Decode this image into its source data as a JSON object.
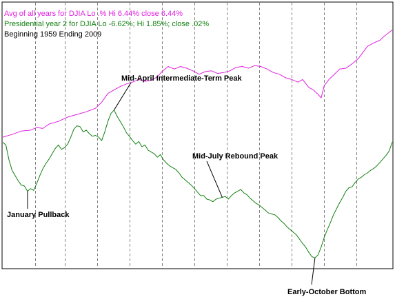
{
  "colors": {
    "background": "#ffffff",
    "avg_series": "#e020e0",
    "pres_series": "#108010",
    "text": "#000000",
    "grid": "#808080",
    "frame": "#000000"
  },
  "legend": {
    "avg": "Avg of all years for DJIA   Lo .% Hi 6.44%  close 6.44%",
    "pres": "Presidential year 2 for DJIA  Lo -6.62%; Hi 1.85%; close .02%",
    "range": "Beginning  1959  Ending  2009"
  },
  "chart_data": {
    "type": "line",
    "x_unit": "trading-day index of year",
    "y_unit": "percent change from start of year",
    "xlim": [
      0,
      252
    ],
    "ylim": [
      -7.2,
      8.0
    ],
    "grid": "vertical dashed monthly lines",
    "month_lines_at": [
      21,
      40,
      61,
      82,
      103,
      124,
      145,
      166,
      187,
      208,
      229
    ],
    "series": [
      {
        "name": "Avg of all years for DJIA",
        "color": "#e020e0",
        "points": [
          [
            0,
            0.3
          ],
          [
            6,
            0.45
          ],
          [
            12,
            0.65
          ],
          [
            18,
            0.7
          ],
          [
            22,
            0.85
          ],
          [
            26,
            0.8
          ],
          [
            30,
            1.05
          ],
          [
            36,
            1.2
          ],
          [
            42,
            1.45
          ],
          [
            48,
            1.6
          ],
          [
            54,
            1.75
          ],
          [
            60,
            1.95
          ],
          [
            64,
            2.3
          ],
          [
            68,
            2.8
          ],
          [
            72,
            3.0
          ],
          [
            76,
            3.2
          ],
          [
            80,
            3.35
          ],
          [
            84,
            3.45
          ],
          [
            88,
            3.6
          ],
          [
            92,
            3.5
          ],
          [
            96,
            3.55
          ],
          [
            100,
            3.75
          ],
          [
            103,
            4.05
          ],
          [
            107,
            4.35
          ],
          [
            111,
            4.2
          ],
          [
            115,
            4.35
          ],
          [
            119,
            4.25
          ],
          [
            123,
            4.1
          ],
          [
            127,
            3.9
          ],
          [
            131,
            4.05
          ],
          [
            135,
            4.1
          ],
          [
            139,
            3.95
          ],
          [
            143,
            4.0
          ],
          [
            147,
            4.1
          ],
          [
            151,
            4.3
          ],
          [
            155,
            4.35
          ],
          [
            159,
            4.25
          ],
          [
            163,
            4.4
          ],
          [
            167,
            4.35
          ],
          [
            171,
            4.2
          ],
          [
            175,
            4.0
          ],
          [
            179,
            3.9
          ],
          [
            183,
            3.7
          ],
          [
            187,
            3.6
          ],
          [
            191,
            3.45
          ],
          [
            194,
            3.6
          ],
          [
            198,
            3.15
          ],
          [
            201,
            3.0
          ],
          [
            204,
            2.75
          ],
          [
            206,
            2.55
          ],
          [
            208,
            3.25
          ],
          [
            211,
            3.6
          ],
          [
            214,
            3.85
          ],
          [
            218,
            4.2
          ],
          [
            222,
            4.25
          ],
          [
            226,
            4.5
          ],
          [
            230,
            4.8
          ],
          [
            233,
            5.15
          ],
          [
            236,
            5.5
          ],
          [
            240,
            5.7
          ],
          [
            244,
            5.85
          ],
          [
            247,
            6.1
          ],
          [
            250,
            6.3
          ],
          [
            252,
            6.44
          ]
        ]
      },
      {
        "name": "Presidential year 2 for DJIA",
        "color": "#108010",
        "points": [
          [
            0,
            0.0
          ],
          [
            2,
            -0.15
          ],
          [
            4,
            -1.0
          ],
          [
            6,
            -1.6
          ],
          [
            8,
            -1.9
          ],
          [
            10,
            -2.2
          ],
          [
            12,
            -2.45
          ],
          [
            14,
            -2.5
          ],
          [
            16,
            -2.8
          ],
          [
            18,
            -2.65
          ],
          [
            20,
            -2.75
          ],
          [
            22,
            -2.35
          ],
          [
            24,
            -1.9
          ],
          [
            26,
            -1.5
          ],
          [
            28,
            -1.2
          ],
          [
            30,
            -0.95
          ],
          [
            32,
            -0.65
          ],
          [
            34,
            -0.35
          ],
          [
            36,
            -0.15
          ],
          [
            38,
            -0.4
          ],
          [
            40,
            -0.3
          ],
          [
            42,
            -0.1
          ],
          [
            44,
            0.3
          ],
          [
            46,
            0.75
          ],
          [
            48,
            0.95
          ],
          [
            50,
            0.9
          ],
          [
            52,
            0.6
          ],
          [
            54,
            0.7
          ],
          [
            56,
            0.5
          ],
          [
            58,
            0.35
          ],
          [
            60,
            0.4
          ],
          [
            62,
            0.3
          ],
          [
            64,
            0.1
          ],
          [
            66,
            0.6
          ],
          [
            68,
            1.2
          ],
          [
            70,
            1.65
          ],
          [
            72,
            1.85
          ],
          [
            74,
            1.5
          ],
          [
            76,
            1.2
          ],
          [
            78,
            0.9
          ],
          [
            80,
            0.55
          ],
          [
            82,
            0.35
          ],
          [
            84,
            0.1
          ],
          [
            86,
            -0.1
          ],
          [
            88,
            0.05
          ],
          [
            90,
            -0.25
          ],
          [
            92,
            -0.15
          ],
          [
            94,
            -0.45
          ],
          [
            96,
            -0.55
          ],
          [
            98,
            -0.65
          ],
          [
            100,
            -0.85
          ],
          [
            102,
            -0.7
          ],
          [
            104,
            -1.0
          ],
          [
            106,
            -1.2
          ],
          [
            108,
            -1.35
          ],
          [
            110,
            -1.45
          ],
          [
            112,
            -1.55
          ],
          [
            114,
            -1.75
          ],
          [
            116,
            -2.0
          ],
          [
            118,
            -2.15
          ],
          [
            120,
            -2.3
          ],
          [
            122,
            -2.45
          ],
          [
            124,
            -2.65
          ],
          [
            126,
            -2.85
          ],
          [
            128,
            -3.05
          ],
          [
            130,
            -3.05
          ],
          [
            132,
            -3.25
          ],
          [
            134,
            -3.3
          ],
          [
            136,
            -3.4
          ],
          [
            138,
            -3.25
          ],
          [
            140,
            -3.2
          ],
          [
            142,
            -3.15
          ],
          [
            144,
            -3.1
          ],
          [
            146,
            -3.25
          ],
          [
            148,
            -3.05
          ],
          [
            150,
            -2.9
          ],
          [
            152,
            -2.8
          ],
          [
            154,
            -2.7
          ],
          [
            156,
            -2.9
          ],
          [
            158,
            -3.0
          ],
          [
            160,
            -3.2
          ],
          [
            162,
            -3.35
          ],
          [
            164,
            -3.5
          ],
          [
            166,
            -3.6
          ],
          [
            168,
            -3.75
          ],
          [
            170,
            -3.9
          ],
          [
            172,
            -4.05
          ],
          [
            174,
            -4.1
          ],
          [
            176,
            -4.15
          ],
          [
            178,
            -4.3
          ],
          [
            180,
            -4.5
          ],
          [
            182,
            -4.65
          ],
          [
            184,
            -4.85
          ],
          [
            186,
            -5.0
          ],
          [
            188,
            -5.15
          ],
          [
            190,
            -5.3
          ],
          [
            192,
            -5.55
          ],
          [
            194,
            -5.8
          ],
          [
            196,
            -6.0
          ],
          [
            198,
            -6.3
          ],
          [
            200,
            -6.55
          ],
          [
            202,
            -6.62
          ],
          [
            204,
            -6.45
          ],
          [
            206,
            -6.0
          ],
          [
            208,
            -5.45
          ],
          [
            210,
            -5.0
          ],
          [
            212,
            -4.6
          ],
          [
            214,
            -4.15
          ],
          [
            216,
            -3.8
          ],
          [
            218,
            -3.45
          ],
          [
            220,
            -3.15
          ],
          [
            222,
            -2.8
          ],
          [
            224,
            -2.6
          ],
          [
            226,
            -2.55
          ],
          [
            228,
            -2.3
          ],
          [
            230,
            -2.1
          ],
          [
            232,
            -2.0
          ],
          [
            234,
            -1.85
          ],
          [
            236,
            -1.75
          ],
          [
            238,
            -1.6
          ],
          [
            240,
            -1.5
          ],
          [
            242,
            -1.35
          ],
          [
            244,
            -1.15
          ],
          [
            246,
            -0.95
          ],
          [
            248,
            -0.75
          ],
          [
            250,
            -0.5
          ],
          [
            252,
            0.02
          ]
        ]
      }
    ],
    "annotations": [
      {
        "text": "Mid-April Intermediate-Term Peak",
        "x": 72,
        "y": 1.85
      },
      {
        "text": "January Pullback",
        "x": 16,
        "y": -2.8
      },
      {
        "text": "Mid-July Rebound Peak",
        "x": 142,
        "y": -3.15
      },
      {
        "text": "Early-October Bottom",
        "x": 202,
        "y": -6.62
      }
    ]
  }
}
